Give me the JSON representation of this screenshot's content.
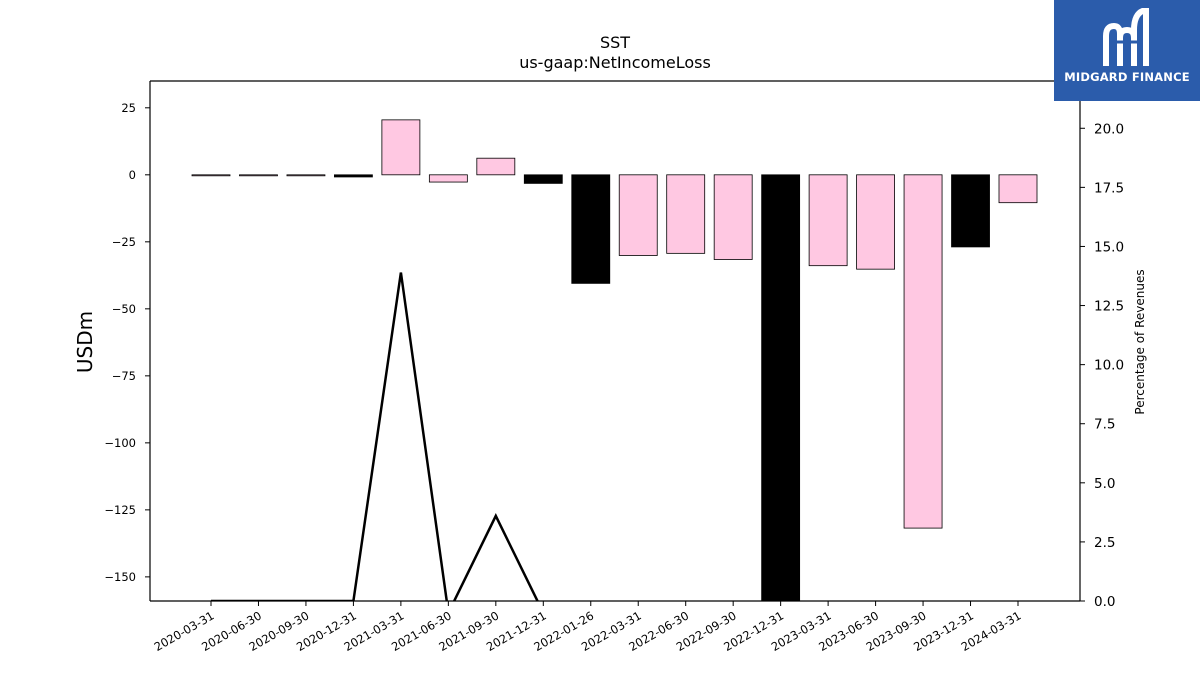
{
  "brand": {
    "name": "MIDGARD FINANCE",
    "background": "#2b5cab"
  },
  "chart_data": {
    "type": "bar",
    "title": "SST",
    "subtitle": "us-gaap:NetIncomeLoss",
    "ylabel": "USDm",
    "y2label": "Percentage of Revenues",
    "ylim": [
      -159,
      35
    ],
    "y2lim": [
      0,
      22
    ],
    "yticks": [
      25,
      0,
      -25,
      -50,
      -75,
      -100,
      -125,
      -150
    ],
    "y2ticks": [
      0.0,
      2.5,
      5.0,
      7.5,
      10.0,
      12.5,
      15.0,
      17.5,
      20.0
    ],
    "categories": [
      "2020-03-31",
      "2020-06-30",
      "2020-09-30",
      "2020-12-31",
      "2021-03-31",
      "2021-06-30",
      "2021-09-30",
      "2021-12-31",
      "2022-01-26",
      "2022-03-31",
      "2022-06-30",
      "2022-09-30",
      "2022-12-31",
      "2023-03-31",
      "2023-06-30",
      "2023-09-30",
      "2023-12-31",
      "2024-03-31"
    ],
    "series": [
      {
        "values": [
          -0.2,
          -0.3,
          -0.3,
          -0.8,
          20.5,
          -2.7,
          6.2,
          -3.2,
          -40.5,
          -30.1,
          -29.3,
          -31.6,
          -162,
          -33.9,
          -35.2,
          -131.8,
          -26.9,
          -10.4
        ],
        "colors": [
          "#ffc8e2",
          "#ffc8e2",
          "#ffc8e2",
          "#000000",
          "#ffc8e2",
          "#ffc8e2",
          "#ffc8e2",
          "#000000",
          "#000000",
          "#ffc8e2",
          "#ffc8e2",
          "#ffc8e2",
          "#000000",
          "#ffc8e2",
          "#ffc8e2",
          "#ffc8e2",
          "#000000",
          "#ffc8e2"
        ]
      },
      {
        "axis": "right",
        "type": "line",
        "points": [
          [
            0,
            0.0
          ],
          [
            1,
            0.0
          ],
          [
            2,
            0.0
          ],
          [
            3,
            0.0
          ],
          [
            4,
            13.9
          ],
          [
            5,
            -0.5
          ],
          [
            6,
            3.6
          ],
          [
            7,
            -0.5
          ]
        ]
      }
    ],
    "grid": false,
    "legend": "none"
  }
}
